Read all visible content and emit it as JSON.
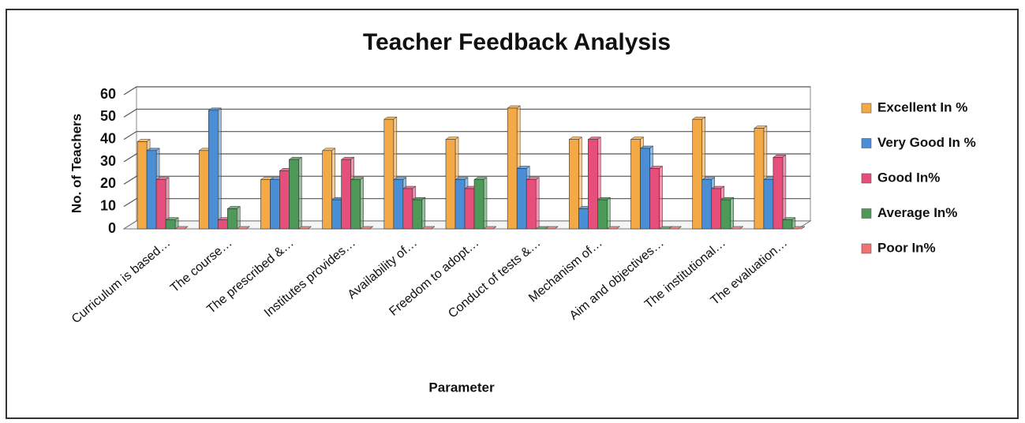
{
  "chart_data": {
    "type": "bar",
    "title": "Teacher Feedback Analysis",
    "x_label": "Parameter",
    "y_label": "No. of Teachers",
    "categories": [
      "Curriculum is based…",
      "The course…",
      "The prescribed &…",
      "Institutes provides…",
      "Availability of…",
      "Freedom to adopt…",
      "Conduct of tests &…",
      "Mechanism of…",
      "Aim and objectives…",
      "The institutional…",
      "The evaluation…"
    ],
    "series": [
      {
        "name": "Excellent In %",
        "color": "#f4a947",
        "values": [
          39,
          35,
          22,
          35,
          49,
          40,
          54,
          40,
          40,
          49,
          45
        ]
      },
      {
        "name": "Very Good In %",
        "color": "#4a8fd6",
        "values": [
          35,
          53,
          22,
          13,
          22,
          22,
          27,
          9,
          36,
          22,
          22
        ]
      },
      {
        "name": "Good In%",
        "color": "#e64f7c",
        "values": [
          22,
          4,
          26,
          31,
          18,
          18,
          22,
          40,
          27,
          18,
          32
        ]
      },
      {
        "name": "Average In%",
        "color": "#4d9a58",
        "values": [
          4,
          9,
          31,
          22,
          13,
          22,
          0,
          13,
          0,
          13,
          4
        ]
      },
      {
        "name": "Poor In%",
        "color": "#f07272",
        "values": [
          0,
          0,
          0,
          0,
          0,
          0,
          0,
          0,
          0,
          0,
          0
        ]
      }
    ],
    "ylim": [
      0,
      60
    ],
    "yticks": [
      0,
      10,
      20,
      30,
      40,
      50,
      60
    ],
    "grid": true,
    "legend": "right"
  }
}
